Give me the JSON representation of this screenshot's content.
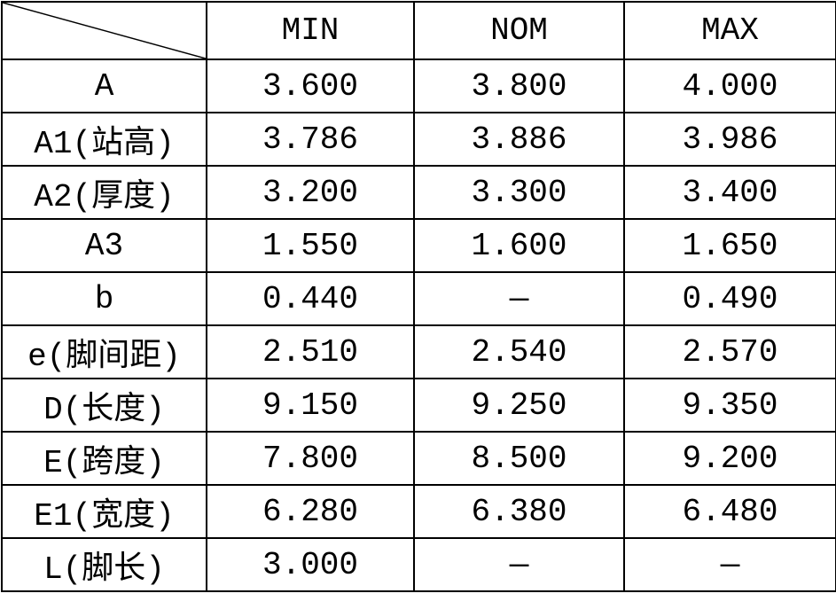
{
  "table": {
    "headers": [
      "",
      "MIN",
      "NOM",
      "MAX"
    ],
    "rows": [
      {
        "param": "A",
        "min": "3.600",
        "nom": "3.800",
        "max": "4.000"
      },
      {
        "param": "A1(站高)",
        "min": "3.786",
        "nom": "3.886",
        "max": "3.986"
      },
      {
        "param": "A2(厚度)",
        "min": "3.200",
        "nom": "3.300",
        "max": "3.400"
      },
      {
        "param": "A3",
        "min": "1.550",
        "nom": "1.600",
        "max": "1.650"
      },
      {
        "param": "b",
        "min": "0.440",
        "nom": "—",
        "max": "0.490"
      },
      {
        "param": "e(脚间距)",
        "min": "2.510",
        "nom": "2.540",
        "max": "2.570"
      },
      {
        "param": "D(长度)",
        "min": "9.150",
        "nom": "9.250",
        "max": "9.350"
      },
      {
        "param": "E(跨度)",
        "min": "7.800",
        "nom": "8.500",
        "max": "9.200"
      },
      {
        "param": "E1(宽度)",
        "min": "6.280",
        "nom": "6.380",
        "max": "6.480"
      },
      {
        "param": "L(脚长)",
        "min": "3.000",
        "nom": "—",
        "max": "—"
      }
    ]
  }
}
